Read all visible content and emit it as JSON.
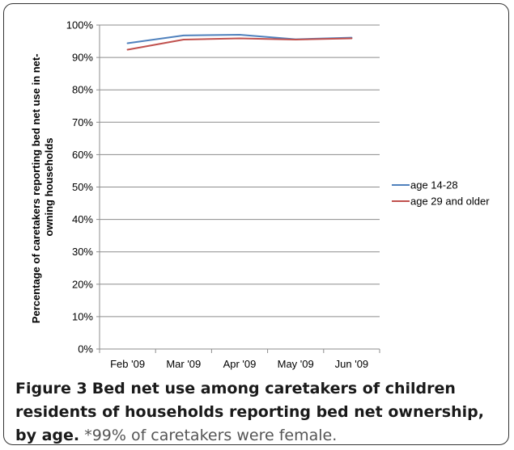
{
  "chart_data": {
    "type": "line",
    "categories": [
      "Feb '09",
      "Mar '09",
      "Apr '09",
      "May '09",
      "Jun '09"
    ],
    "ylabel_line1": "Percentage of caretakers reporting bed net use in net-",
    "ylabel_line2": "owning households",
    "ylim": [
      0,
      100
    ],
    "yticks": [
      0,
      10,
      20,
      30,
      40,
      50,
      60,
      70,
      80,
      90,
      100
    ],
    "ytick_labels": [
      "0%",
      "10%",
      "20%",
      "30%",
      "40%",
      "50%",
      "60%",
      "70%",
      "80%",
      "90%",
      "100%"
    ],
    "grid": true,
    "legend_position": "right",
    "series": [
      {
        "name": "age 14-28",
        "color": "#4F81BD",
        "values": [
          94.4,
          96.8,
          97.0,
          95.6,
          96.1
        ]
      },
      {
        "name": "age 29 and older",
        "color": "#C0504D",
        "values": [
          92.4,
          95.5,
          95.9,
          95.5,
          95.9
        ]
      }
    ]
  },
  "caption": {
    "label": "Figure 3",
    "title": "Bed net use among caretakers of children residents of households reporting bed net ownership, by age.",
    "note": "*99% of caretakers were female."
  }
}
